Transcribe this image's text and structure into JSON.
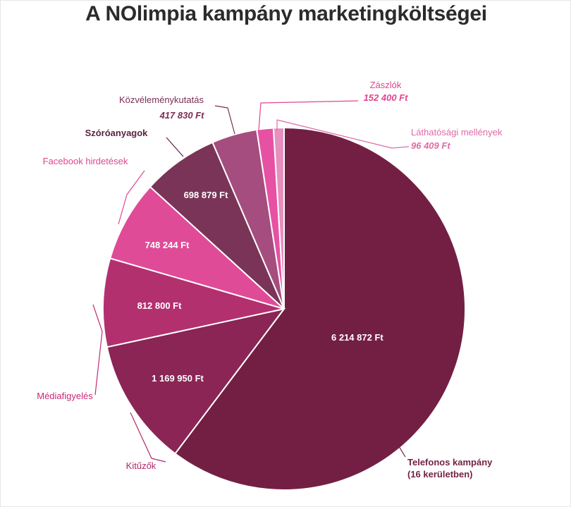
{
  "chart_data": {
    "type": "pie",
    "title": "A NOlimpia kampány marketingköltségei",
    "slices": [
      {
        "name": "Telefonos kampány (16 kerületben)",
        "label_lines": [
          "Telefonos kampány",
          "(16 kerületben)"
        ],
        "value": 6214872,
        "value_label": "6 214 872 Ft",
        "color": "#731f44",
        "name_color": "#731f44"
      },
      {
        "name": "Kitűzők",
        "label_lines": [
          "Kitűzők"
        ],
        "value": 1169950,
        "value_label": "1 169 950 Ft",
        "color": "#8a2555",
        "name_color": "#b3286c"
      },
      {
        "name": "Médiafigyelés",
        "label_lines": [
          "Médiafigyelés"
        ],
        "value": 812800,
        "value_label": "812 800 Ft",
        "color": "#b3306f",
        "name_color": "#c62a78"
      },
      {
        "name": "Facebook hirdetések",
        "label_lines": [
          "Facebook hirdetések"
        ],
        "value": 748244,
        "value_label": "748 244 Ft",
        "color": "#e04b97",
        "name_color": "#e0458f"
      },
      {
        "name": "Szóróanyagok",
        "label_lines": [
          "Szóróanyagok"
        ],
        "value": 698879,
        "value_label": "698 879 Ft",
        "color": "#7a3458",
        "name_color": "#5a2340"
      },
      {
        "name": "Közvéleménykutatás",
        "label_lines": [
          "Közvéleménykutatás"
        ],
        "value": 417830,
        "value_label": "417 830 Ft",
        "color": "#a54d7e",
        "name_color": "#7a2d55"
      },
      {
        "name": "Zászlók",
        "label_lines": [
          "Zászlók"
        ],
        "value": 152400,
        "value_label": "152 400 Ft",
        "color": "#e651a3",
        "name_color": "#e0458f"
      },
      {
        "name": "Láthatósági mellények",
        "label_lines": [
          "Láthatósági mellények"
        ],
        "value": 96409,
        "value_label": "96 409 Ft",
        "color": "#e78fbe",
        "name_color": "#e06aa5"
      }
    ]
  }
}
